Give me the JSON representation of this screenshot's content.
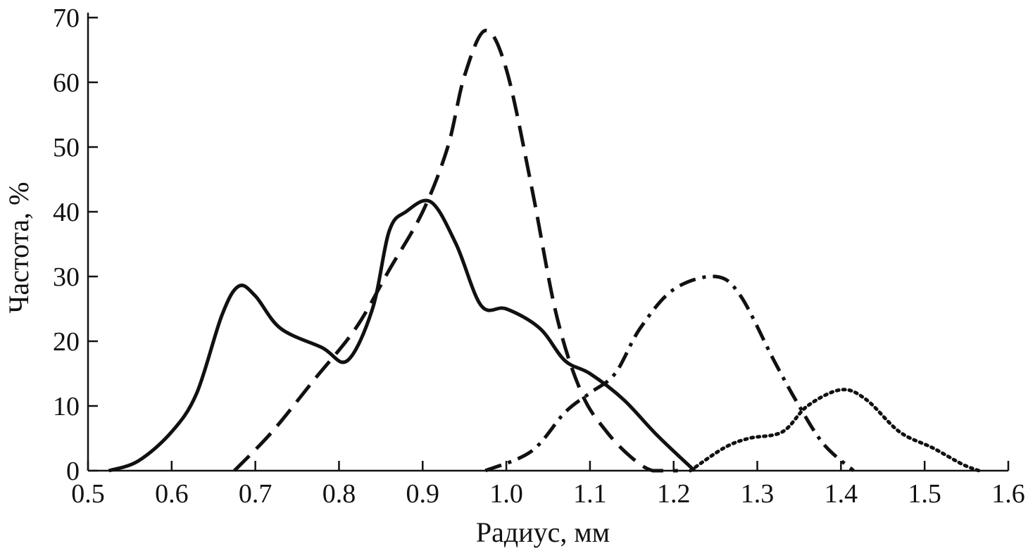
{
  "chart_data": {
    "type": "line",
    "title": "",
    "xlabel": "Радиус, мм",
    "ylabel": "Частота, %",
    "xlim": [
      0.5,
      1.6
    ],
    "ylim": [
      0,
      70
    ],
    "x_ticks": [
      "0.5",
      "0.6",
      "0.7",
      "0.8",
      "0.9",
      "1.0",
      "1.1",
      "1.2",
      "1.3",
      "1.4",
      "1.5",
      "1.6"
    ],
    "y_ticks": [
      "0",
      "10",
      "20",
      "30",
      "40",
      "50",
      "60",
      "70"
    ],
    "grid": false,
    "legend": "none",
    "series": [
      {
        "style": "solid",
        "x": [
          0.525,
          0.56,
          0.6,
          0.63,
          0.66,
          0.68,
          0.7,
          0.73,
          0.78,
          0.81,
          0.84,
          0.86,
          0.88,
          0.91,
          0.94,
          0.97,
          1.0,
          1.04,
          1.07,
          1.1,
          1.14,
          1.18,
          1.225
        ],
        "y": [
          0,
          1.5,
          6,
          12,
          24,
          28.5,
          27,
          22,
          19,
          17,
          25,
          37,
          40,
          41.5,
          35,
          25.5,
          25,
          22,
          17,
          15,
          11,
          5.5,
          0
        ]
      },
      {
        "style": "dashed",
        "x": [
          0.675,
          0.72,
          0.77,
          0.82,
          0.86,
          0.9,
          0.93,
          0.95,
          0.975,
          1.0,
          1.03,
          1.06,
          1.09,
          1.12,
          1.15,
          1.175,
          1.205
        ],
        "y": [
          0,
          6,
          14,
          22,
          31,
          40,
          50,
          61,
          68,
          62,
          44,
          24,
          12,
          6,
          2,
          0,
          0
        ]
      },
      {
        "style": "dash-dot",
        "x": [
          0.975,
          1.03,
          1.07,
          1.1,
          1.13,
          1.16,
          1.2,
          1.25,
          1.28,
          1.32,
          1.35,
          1.38,
          1.415
        ],
        "y": [
          0,
          3,
          9,
          12,
          15,
          22,
          28,
          30,
          27,
          17,
          10,
          4,
          0
        ]
      },
      {
        "style": "dotted",
        "x": [
          1.22,
          1.26,
          1.29,
          1.33,
          1.36,
          1.4,
          1.43,
          1.47,
          1.51,
          1.545,
          1.565
        ],
        "y": [
          0,
          3.5,
          5,
          6,
          10,
          12.5,
          11,
          6,
          3.5,
          1,
          0
        ]
      }
    ]
  }
}
